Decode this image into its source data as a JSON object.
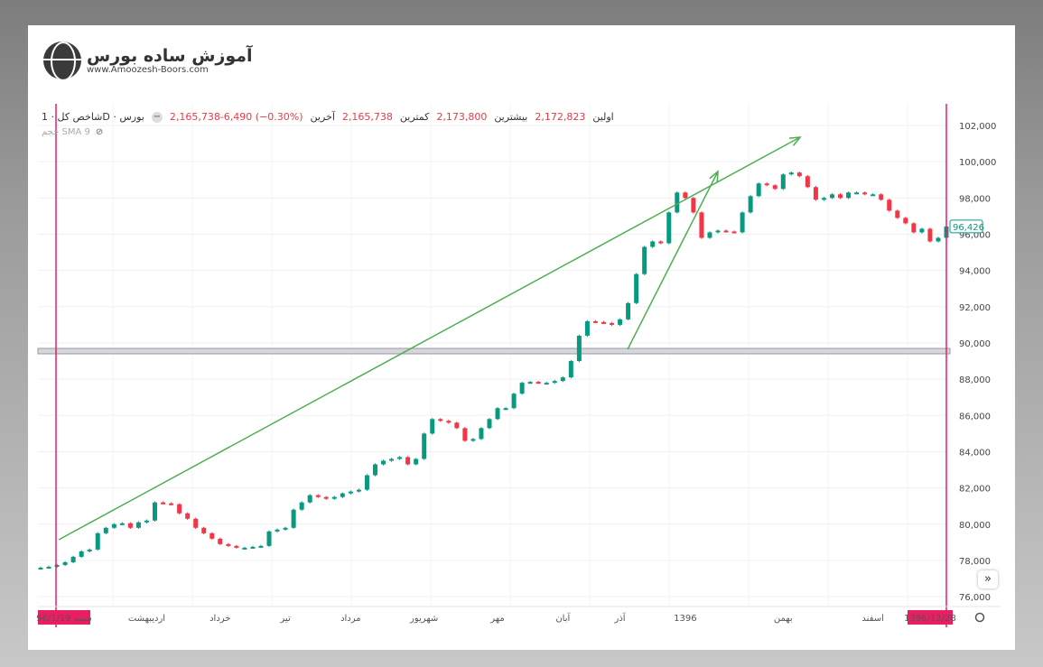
{
  "logo": {
    "title": "آموزش ساده بورس",
    "url": "www.Amoozesh-Boors.com"
  },
  "legend": {
    "symbol": "شاخص کل · 1D · بورس",
    "change": "2,165,738-6,490 (−0.30%)",
    "last_label": "آخرین",
    "low_label": "کمترین",
    "low": "2,165,738",
    "high_label": "بیشترین",
    "high": "2,173,800",
    "open_label": "اولین",
    "open": "2,172,823",
    "indicator": "حجم SMA 9"
  },
  "colors": {
    "up": "#089981",
    "down": "#f23645",
    "marker": "#e91e63",
    "arrow": "#4caf50",
    "band": "#b0b0b8"
  },
  "chart_data": {
    "type": "candlestick",
    "ylim": [
      75000,
      103000
    ],
    "yticks": [
      "76,000",
      "78,000",
      "80,000",
      "82,000",
      "84,000",
      "86,000",
      "88,000",
      "90,000",
      "92,000",
      "94,000",
      "96,000",
      "98,000",
      "100,000",
      "102,000"
    ],
    "ytick_values": [
      76000,
      78000,
      80000,
      82000,
      84000,
      86000,
      88000,
      90000,
      92000,
      94000,
      96000,
      98000,
      100000,
      102000
    ],
    "last_price": "96,426",
    "last_value": 96426,
    "closes": [
      77600,
      77650,
      77750,
      77900,
      78200,
      78500,
      78600,
      79500,
      79800,
      80000,
      80050,
      79800,
      80100,
      80200,
      81200,
      81150,
      81100,
      80600,
      80300,
      79800,
      79500,
      79200,
      78900,
      78800,
      78700,
      78700,
      78750,
      78800,
      79600,
      79700,
      79800,
      80800,
      81200,
      81600,
      81500,
      81400,
      81500,
      81700,
      81800,
      81900,
      82700,
      83300,
      83500,
      83600,
      83700,
      83300,
      83600,
      85000,
      85800,
      85700,
      85600,
      85300,
      84600,
      84700,
      85300,
      85800,
      86400,
      86400,
      87200,
      87800,
      87850,
      87800,
      87800,
      87900,
      88100,
      89000,
      90400,
      91200,
      91150,
      91100,
      91000,
      91300,
      92200,
      93800,
      95300,
      95600,
      95500,
      97200,
      98300,
      98000,
      97200,
      95800,
      96100,
      96200,
      96150,
      96100,
      97200,
      98100,
      98800,
      98700,
      98500,
      99300,
      99400,
      99200,
      98600,
      97900,
      98000,
      98200,
      98000,
      98300,
      98300,
      98200,
      98200,
      97900,
      97300,
      96900,
      96600,
      96100,
      96300,
      95600,
      95800,
      96426
    ],
    "horizontal_level": 89550,
    "time_labels": [
      "شنبه 96/1/19",
      "اردیبهشت",
      "خرداد",
      "تیر",
      "مرداد",
      "شهریور",
      "مهر",
      "آبان",
      "آذر",
      "1396",
      "بهمن",
      "اسفند",
      "1396/12/28"
    ],
    "time_label_index": [
      0,
      13,
      22,
      30,
      38,
      47,
      56,
      64,
      71,
      79,
      91,
      102,
      111
    ]
  }
}
